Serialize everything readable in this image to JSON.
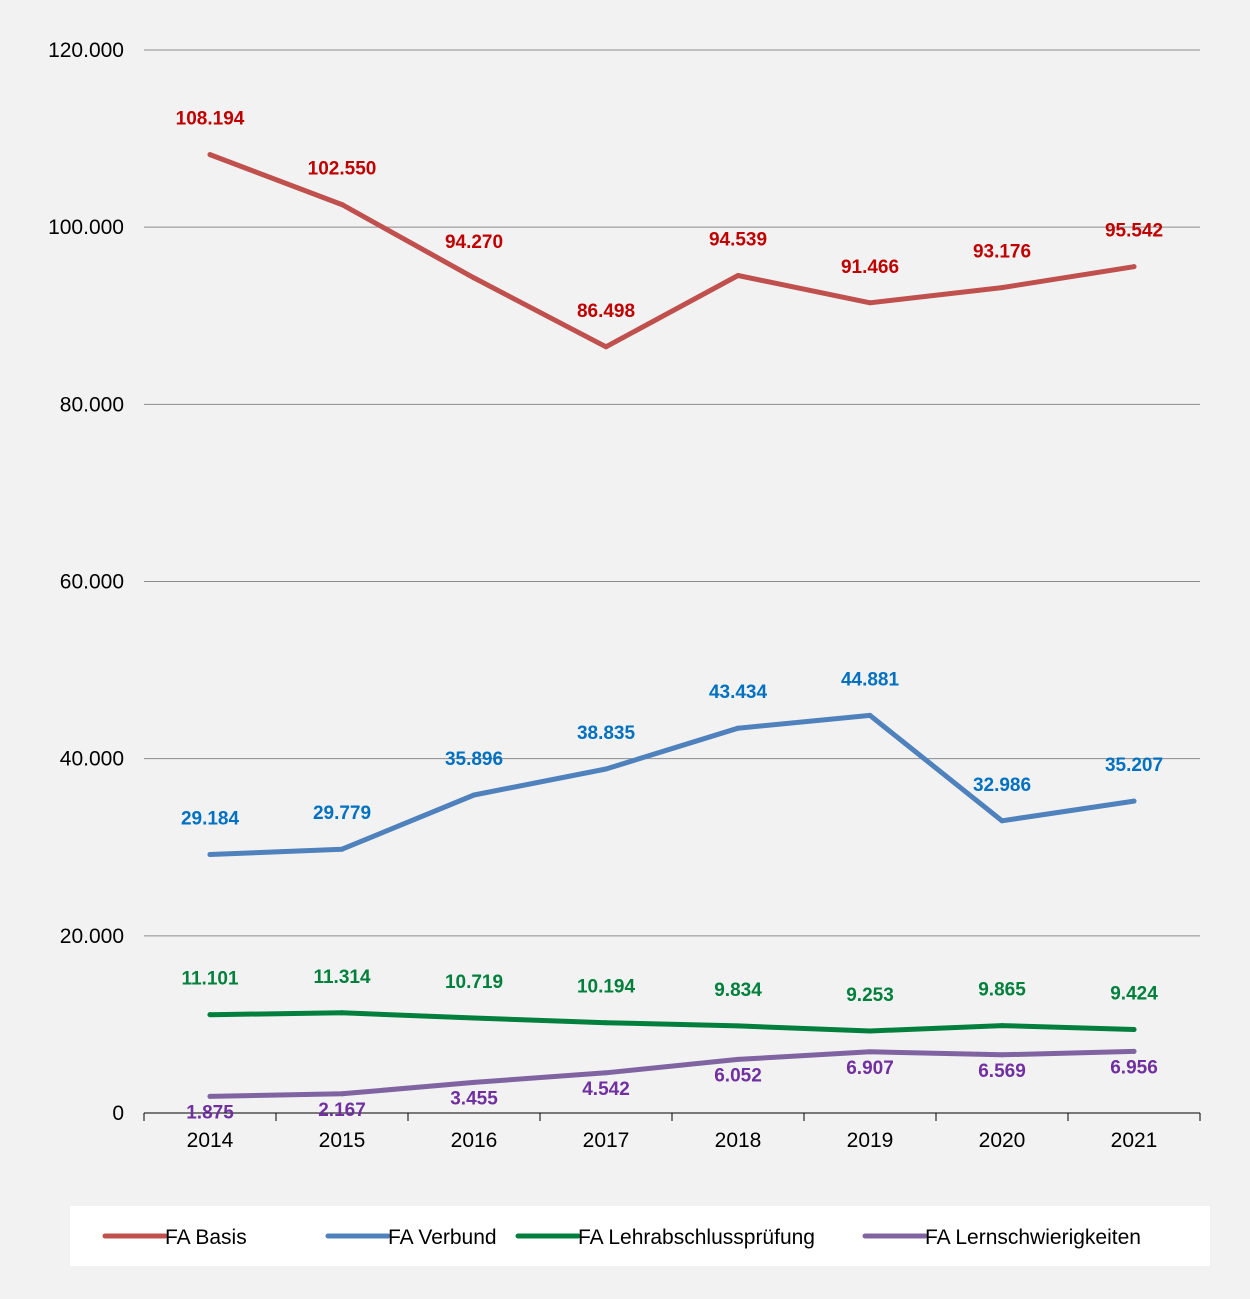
{
  "chart_data": {
    "type": "line",
    "title": "",
    "xlabel": "",
    "ylabel": "",
    "categories": [
      "2014",
      "2015",
      "2016",
      "2017",
      "2018",
      "2019",
      "2020",
      "2021"
    ],
    "ylim": [
      0,
      120000
    ],
    "yticks": [
      0,
      20000,
      40000,
      60000,
      80000,
      100000,
      120000
    ],
    "ytick_labels": [
      "0",
      "20.000",
      "40.000",
      "60.000",
      "80.000",
      "100.000",
      "120.000"
    ],
    "grid": "horizontal",
    "legend_position": "bottom",
    "series": [
      {
        "name": "FA Basis",
        "color": "#c0504d",
        "label_color": "#c00000",
        "values": [
          108194,
          102550,
          94270,
          86498,
          94539,
          91466,
          93176,
          95542
        ],
        "labels": [
          "108.194",
          "102.550",
          "94.270",
          "86.498",
          "94.539",
          "91.466",
          "93.176",
          "95.542"
        ]
      },
      {
        "name": "FA Verbund",
        "color": "#4f81bd",
        "label_color": "#0070c0",
        "values": [
          29184,
          29779,
          35896,
          38835,
          43434,
          44881,
          32986,
          35207
        ],
        "labels": [
          "29.184",
          "29.779",
          "35.896",
          "38.835",
          "43.434",
          "44.881",
          "32.986",
          "35.207"
        ]
      },
      {
        "name": "FA Lehrabschlussprüfung",
        "color": "#00803c",
        "label_color": "#00803c",
        "values": [
          11101,
          11314,
          10719,
          10194,
          9834,
          9253,
          9865,
          9424
        ],
        "labels": [
          "11.101",
          "11.314",
          "10.719",
          "10.194",
          "9.834",
          "9.253",
          "9.865",
          "9.424"
        ]
      },
      {
        "name": "FA Lernschwierigkeiten",
        "color": "#8064a2",
        "label_color": "#7030a0",
        "values": [
          1875,
          2167,
          3455,
          4542,
          6052,
          6907,
          6569,
          6956
        ],
        "labels": [
          "1.875",
          "2.167",
          "3.455",
          "4.542",
          "6.052",
          "6.907",
          "6.569",
          "6.956"
        ]
      }
    ]
  }
}
